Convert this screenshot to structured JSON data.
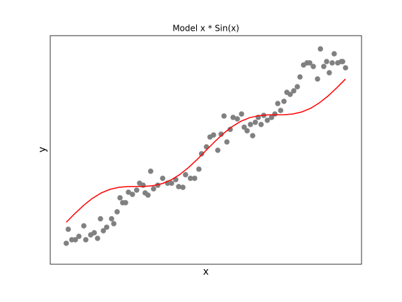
{
  "chart_data": {
    "type": "scatter",
    "title": "Model x * Sin(x)",
    "x_label": "x",
    "y_label": "y",
    "xlim": [
      -0.72,
      13.29
    ],
    "ylim": [
      -3.68,
      16.37
    ],
    "series": [
      {
        "type": "scatter",
        "color": "#808080",
        "x": [
          0,
          0.09,
          0.25,
          0.41,
          0.57,
          0.79,
          0.88,
          1.1,
          1.26,
          1.41,
          1.54,
          1.67,
          1.82,
          2.04,
          2.14,
          2.29,
          2.42,
          2.54,
          2.67,
          2.8,
          2.98,
          3.17,
          3.3,
          3.46,
          3.55,
          3.68,
          3.8,
          3.93,
          4.12,
          4.34,
          4.56,
          4.74,
          4.93,
          5.06,
          5.25,
          5.37,
          5.59,
          5.78,
          5.97,
          6.09,
          6.31,
          6.47,
          6.63,
          6.82,
          6.97,
          7.1,
          7.23,
          7.38,
          7.51,
          7.7,
          7.89,
          8.01,
          8.14,
          8.29,
          8.39,
          8.51,
          8.64,
          8.77,
          8.89,
          9.05,
          9.24,
          9.39,
          9.52,
          9.65,
          9.8,
          9.93,
          10.08,
          10.24,
          10.4,
          10.52,
          10.68,
          10.84,
          10.96,
          11.12,
          11.31,
          11.44,
          11.59,
          11.72,
          11.84,
          11.97,
          12.06,
          12.22,
          12.38,
          12.44,
          12.57
        ],
        "values": [
          -1.84,
          -0.61,
          -1.53,
          -1.53,
          -1.23,
          -0.31,
          -1.53,
          -1.1,
          -0.92,
          -1.41,
          0.31,
          -0.74,
          -0.43,
          0.31,
          -0.12,
          0.92,
          2.15,
          1.72,
          1.72,
          2.64,
          2.45,
          2.82,
          3.43,
          3.25,
          2.58,
          2.39,
          4.48,
          2.94,
          3.25,
          3.86,
          3.43,
          3.43,
          3.74,
          3.13,
          3.07,
          4.17,
          3.86,
          3.86,
          4.66,
          6.01,
          6.62,
          7.48,
          7.66,
          6.32,
          7.73,
          9.32,
          7.05,
          8.15,
          9.2,
          9.07,
          9.5,
          8.34,
          8.03,
          8.58,
          7.6,
          8.77,
          9.2,
          8.58,
          9.38,
          8.95,
          9.2,
          9.5,
          10.42,
          9.81,
          10.61,
          11.4,
          11.22,
          11.53,
          11.89,
          12.75,
          13.8,
          13.98,
          13.98,
          13.67,
          12.57,
          15.21,
          13.67,
          14.1,
          13.12,
          13.98,
          14.78,
          13.98,
          14.1,
          14.1,
          13.55
        ]
      },
      {
        "type": "line",
        "color": "#ff0000",
        "x": [
          0,
          0.393,
          0.785,
          1.178,
          1.571,
          1.963,
          2.356,
          2.749,
          3.142,
          3.534,
          3.927,
          4.32,
          4.712,
          5.105,
          5.498,
          5.89,
          6.283,
          6.676,
          7.069,
          7.461,
          7.854,
          8.247,
          8.639,
          9.032,
          9.425,
          9.817,
          10.21,
          10.603,
          10.996,
          11.388,
          11.781,
          12.174,
          12.566
        ],
        "values": [
          0,
          0.776,
          1.492,
          2.102,
          2.571,
          2.887,
          3.063,
          3.132,
          3.142,
          3.151,
          3.22,
          3.396,
          3.712,
          4.181,
          4.791,
          5.507,
          6.283,
          7.059,
          7.776,
          8.385,
          8.854,
          9.171,
          9.346,
          9.415,
          9.425,
          9.434,
          9.503,
          9.679,
          9.996,
          10.464,
          11.074,
          11.791,
          12.566
        ]
      }
    ]
  }
}
